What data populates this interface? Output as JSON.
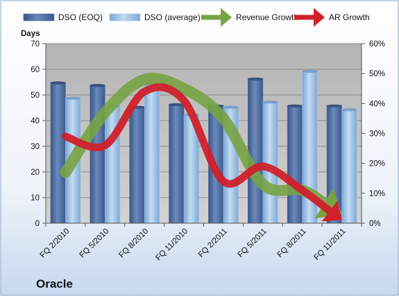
{
  "chart_data": {
    "type": "bar",
    "categories": [
      "FQ 2/2010",
      "FQ 5/2010",
      "FQ 8/2010",
      "FQ 11/2010",
      "FQ 2/2011",
      "FQ 5/2011",
      "FQ 8/2011",
      "FQ 11/2011"
    ],
    "series": [
      {
        "name": "DSO (EOQ)",
        "axis": "left",
        "kind": "bar",
        "values": [
          55,
          54,
          45.5,
          46.5,
          46,
          56.5,
          46,
          46
        ]
      },
      {
        "name": "DSO (average)",
        "axis": "left",
        "kind": "bar",
        "values": [
          49,
          46,
          54.5,
          42.5,
          45.5,
          47.5,
          59.5,
          44.5
        ]
      },
      {
        "name": "Revenue Growth",
        "axis": "right",
        "kind": "arrow-line",
        "values": [
          0.17,
          0.37,
          0.48,
          0.45,
          0.35,
          0.13,
          0.11,
          0.03
        ]
      },
      {
        "name": "AR Growth",
        "axis": "right",
        "kind": "arrow-line",
        "values": [
          0.29,
          0.26,
          0.44,
          0.41,
          0.14,
          0.19,
          0.11,
          0.01
        ]
      }
    ],
    "ylabel": "Days",
    "ylim": [
      0,
      70
    ],
    "yticks": [
      "0",
      "10",
      "20",
      "30",
      "40",
      "50",
      "60",
      "70"
    ],
    "y2lim": [
      0,
      0.6
    ],
    "y2ticks": [
      "0%",
      "10%",
      "20%",
      "30%",
      "40%",
      "50%",
      "60%"
    ],
    "legend": "top",
    "grid": true,
    "colors": {
      "dso_eoq": "#4f6fa3",
      "dso_avg": "#9dc3e6",
      "revenue_growth": "#77a342",
      "ar_growth": "#d0202b"
    }
  },
  "company": "Oracle"
}
